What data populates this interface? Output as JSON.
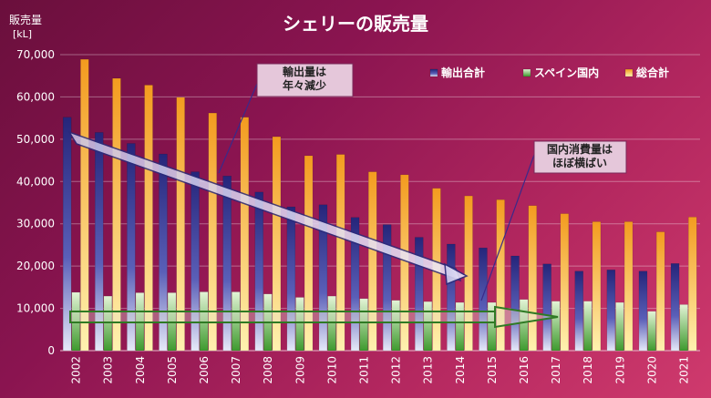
{
  "chart_data": {
    "type": "bar",
    "title": "シェリーの販売量",
    "ylabel": "販売量",
    "yunit": "[kL]",
    "xlabel": "",
    "ylim": [
      0,
      70000
    ],
    "yticks": [
      0,
      10000,
      20000,
      30000,
      40000,
      50000,
      60000,
      70000
    ],
    "ytick_labels": [
      "0",
      "10,000",
      "20,000",
      "30,000",
      "40,000",
      "50,000",
      "60,000",
      "70,000"
    ],
    "grid": true,
    "legend_position": "top-right",
    "categories": [
      "2002",
      "2003",
      "2004",
      "2005",
      "2006",
      "2007",
      "2008",
      "2009",
      "2010",
      "2011",
      "2012",
      "2013",
      "2014",
      "2015",
      "2016",
      "2017",
      "2018",
      "2019",
      "2020",
      "2021"
    ],
    "series": [
      {
        "name": "輸出合計",
        "color": "#2e2f86",
        "values": [
          55200,
          51600,
          49000,
          46500,
          42300,
          41300,
          37500,
          34000,
          34500,
          31500,
          29800,
          26800,
          25200,
          24300,
          22400,
          20500,
          18800,
          19100,
          18800,
          20600
        ]
      },
      {
        "name": "スペイン国内",
        "color": "#4aa93a",
        "values": [
          13800,
          12900,
          13700,
          13700,
          13900,
          13900,
          13400,
          12600,
          12900,
          12300,
          11900,
          11600,
          11400,
          11400,
          12100,
          11700,
          11700,
          11400,
          9300,
          10900
        ]
      },
      {
        "name": "総合計",
        "color": "#f2a12a",
        "values": [
          68900,
          64400,
          62800,
          59900,
          56200,
          55200,
          50600,
          46100,
          46400,
          42300,
          41600,
          38400,
          36600,
          35700,
          34300,
          32400,
          30500,
          30500,
          28100,
          31600
        ]
      }
    ],
    "annotations": [
      {
        "text_lines": [
          "輸出量は",
          "年々減少"
        ]
      },
      {
        "text_lines": [
          "国内消費量は",
          "ほぼ横ばい"
        ]
      }
    ]
  }
}
